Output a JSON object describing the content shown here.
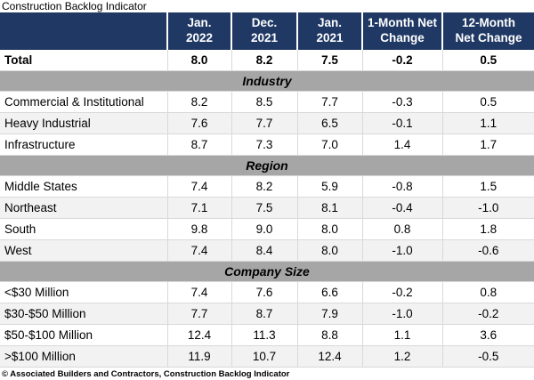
{
  "title": "Construction Backlog Indicator",
  "columns": [
    "Jan.\n2022",
    "Dec.\n2021",
    "Jan.\n2021",
    "1-Month Net\nChange",
    "12-Month\nNet Change"
  ],
  "table": {
    "total": {
      "label": "Total",
      "values": [
        "8.0",
        "8.2",
        "7.5",
        "-0.2",
        "0.5"
      ]
    },
    "sections": [
      {
        "name": "Industry",
        "rows": [
          {
            "label": "Commercial & Institutional",
            "values": [
              "8.2",
              "8.5",
              "7.7",
              "-0.3",
              "0.5"
            ]
          },
          {
            "label": "Heavy Industrial",
            "values": [
              "7.6",
              "7.7",
              "6.5",
              "-0.1",
              "1.1"
            ]
          },
          {
            "label": "Infrastructure",
            "values": [
              "8.7",
              "7.3",
              "7.0",
              "1.4",
              "1.7"
            ]
          }
        ]
      },
      {
        "name": "Region",
        "rows": [
          {
            "label": "Middle States",
            "values": [
              "7.4",
              "8.2",
              "5.9",
              "-0.8",
              "1.5"
            ]
          },
          {
            "label": "Northeast",
            "values": [
              "7.1",
              "7.5",
              "8.1",
              "-0.4",
              "-1.0"
            ]
          },
          {
            "label": "South",
            "values": [
              "9.8",
              "9.0",
              "8.0",
              "0.8",
              "1.8"
            ]
          },
          {
            "label": "West",
            "values": [
              "7.4",
              "8.4",
              "8.0",
              "-1.0",
              "-0.6"
            ]
          }
        ]
      },
      {
        "name": "Company Size",
        "rows": [
          {
            "label": "<$30 Million",
            "values": [
              "7.4",
              "7.6",
              "6.6",
              "-0.2",
              "0.8"
            ]
          },
          {
            "label": "$30-$50 Million",
            "values": [
              "7.7",
              "8.7",
              "7.9",
              "-1.0",
              "-0.2"
            ]
          },
          {
            "label": "$50-$100 Million",
            "values": [
              "12.4",
              "11.3",
              "8.8",
              "1.1",
              "3.6"
            ]
          },
          {
            "label": ">$100 Million",
            "values": [
              "11.9",
              "10.7",
              "12.4",
              "1.2",
              "-0.5"
            ]
          }
        ]
      }
    ]
  },
  "footer": "© Associated Builders and Contractors, Construction Backlog Indicator",
  "colors": {
    "header_bg": "#1f3864",
    "header_text": "#ffffff",
    "section_band_bg": "#a6a6a6",
    "row_stripe": "#f2f2f2",
    "gridline": "#d9d9d9"
  },
  "chart_data": {
    "type": "table",
    "title": "Construction Backlog Indicator",
    "columns": [
      "Jan. 2022",
      "Dec. 2021",
      "Jan. 2021",
      "1-Month Net Change",
      "12-Month Net Change"
    ],
    "rows": [
      {
        "section": null,
        "label": "Total",
        "values": [
          8.0,
          8.2,
          7.5,
          -0.2,
          0.5
        ]
      },
      {
        "section": "Industry",
        "label": "Commercial & Institutional",
        "values": [
          8.2,
          8.5,
          7.7,
          -0.3,
          0.5
        ]
      },
      {
        "section": "Industry",
        "label": "Heavy Industrial",
        "values": [
          7.6,
          7.7,
          6.5,
          -0.1,
          1.1
        ]
      },
      {
        "section": "Industry",
        "label": "Infrastructure",
        "values": [
          8.7,
          7.3,
          7.0,
          1.4,
          1.7
        ]
      },
      {
        "section": "Region",
        "label": "Middle States",
        "values": [
          7.4,
          8.2,
          5.9,
          -0.8,
          1.5
        ]
      },
      {
        "section": "Region",
        "label": "Northeast",
        "values": [
          7.1,
          7.5,
          8.1,
          -0.4,
          -1.0
        ]
      },
      {
        "section": "Region",
        "label": "South",
        "values": [
          9.8,
          9.0,
          8.0,
          0.8,
          1.8
        ]
      },
      {
        "section": "Region",
        "label": "West",
        "values": [
          7.4,
          8.4,
          8.0,
          -1.0,
          -0.6
        ]
      },
      {
        "section": "Company Size",
        "label": "<$30 Million",
        "values": [
          7.4,
          7.6,
          6.6,
          -0.2,
          0.8
        ]
      },
      {
        "section": "Company Size",
        "label": "$30-$50 Million",
        "values": [
          7.7,
          8.7,
          7.9,
          -1.0,
          -0.2
        ]
      },
      {
        "section": "Company Size",
        "label": "$50-$100 Million",
        "values": [
          12.4,
          11.3,
          8.8,
          1.1,
          3.6
        ]
      },
      {
        "section": "Company Size",
        "label": ">$100 Million",
        "values": [
          11.9,
          10.7,
          12.4,
          1.2,
          -0.5
        ]
      }
    ],
    "footnote": "© Associated Builders and Contractors, Construction Backlog Indicator"
  }
}
